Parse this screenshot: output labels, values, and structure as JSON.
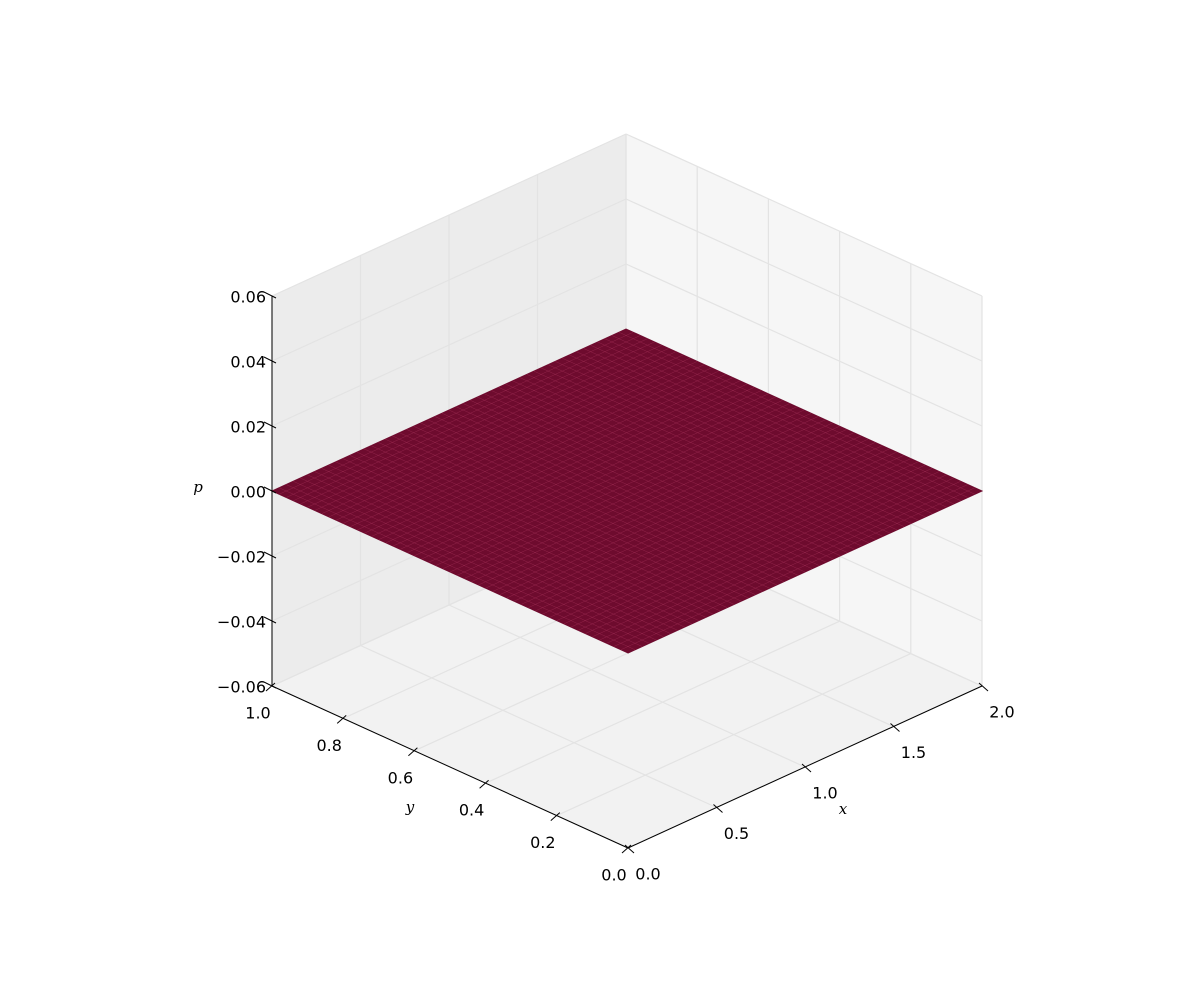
{
  "chart_data": {
    "type": "surface3d",
    "xlabel": "x",
    "ylabel": "y",
    "zlabel": "p",
    "x": [
      0,
      2
    ],
    "y": [
      0,
      1
    ],
    "z": [
      [
        0,
        0
      ],
      [
        0,
        0
      ]
    ],
    "color": "#6e0b2e",
    "xlim": [
      0,
      2
    ],
    "ylim": [
      0,
      1
    ],
    "zlim": [
      -0.06,
      0.06
    ],
    "xticks": [
      {
        "value": 0,
        "label": "0.0"
      },
      0.5,
      {
        "value": 1,
        "label": "1.0"
      },
      1.5,
      {
        "value": 2,
        "label": "2.0"
      }
    ],
    "yticks": [
      {
        "value": 0,
        "label": "0.0"
      },
      0.2,
      0.4,
      0.6,
      0.8,
      {
        "value": 1,
        "label": "1.0"
      }
    ],
    "zticks": [
      {
        "value": -0.06,
        "label": "−0.06"
      },
      {
        "value": -0.04,
        "label": "−0.04"
      },
      {
        "value": -0.02,
        "label": "−0.02"
      },
      {
        "value": 0,
        "label": "0.00"
      },
      0.02,
      0.04,
      0.06
    ],
    "grid": true
  }
}
